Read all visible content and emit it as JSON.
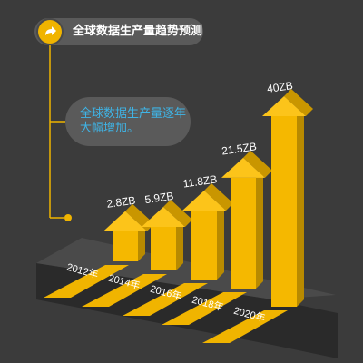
{
  "header": {
    "title": "全球数据生产量趋势预测"
  },
  "note": {
    "text": "全球数据生产量逐年大幅增加。"
  },
  "colors": {
    "background": "#3b3b3b",
    "pill": "#5a5a5a",
    "accent": "#f0b400",
    "note_text": "#3fb4e6",
    "platform": "#2b2b2b"
  },
  "chart_data": {
    "type": "bar",
    "categories": [
      "2012年",
      "2014年",
      "2016年",
      "2018年",
      "2020年"
    ],
    "values": [
      2.8,
      5.9,
      11.8,
      21.5,
      40
    ],
    "value_labels": [
      "2.8ZB",
      "5.9ZB",
      "11.8ZB",
      "21.5ZB",
      "40ZB"
    ],
    "title": "全球数据生产量趋势预测",
    "ylabel": "",
    "xlabel": ""
  }
}
